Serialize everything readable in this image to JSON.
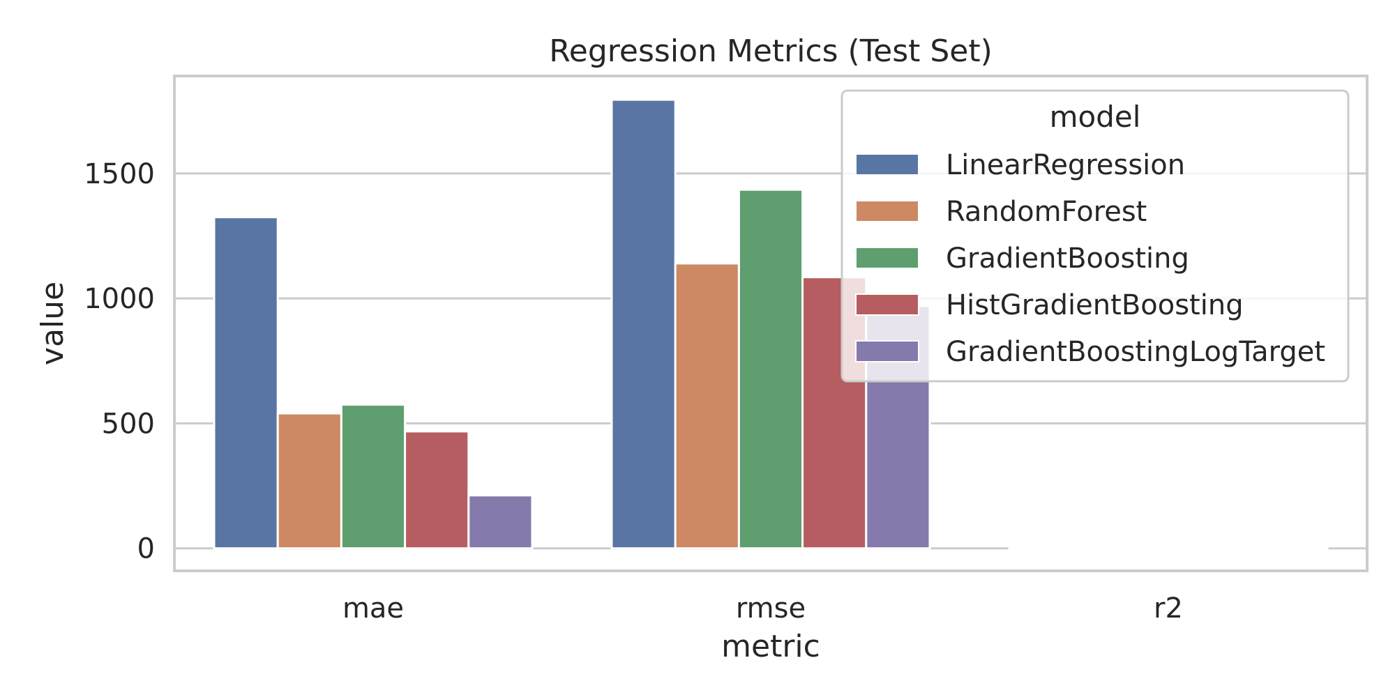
{
  "chart_data": {
    "type": "bar",
    "title": "Regression Metrics (Test Set)",
    "xlabel": "metric",
    "ylabel": "value",
    "categories": [
      "mae",
      "rmse",
      "r2"
    ],
    "ylim": [
      -90,
      1890
    ],
    "yticks": [
      0,
      500,
      1000,
      1500
    ],
    "grid": true,
    "legend": {
      "title": "model",
      "placement": "top-right"
    },
    "series": [
      {
        "name": "LinearRegression",
        "color": "#5875a4",
        "values": [
          1325,
          1795,
          0.55
        ]
      },
      {
        "name": "RandomForest",
        "color": "#cc8963",
        "values": [
          540,
          1140,
          0.91
        ]
      },
      {
        "name": "GradientBoosting",
        "color": "#5f9e6e",
        "values": [
          575,
          1435,
          0.84
        ]
      },
      {
        "name": "HistGradientBoosting",
        "color": "#b55d60",
        "values": [
          468,
          1085,
          0.92
        ]
      },
      {
        "name": "GradientBoostingLogTarget",
        "color": "#857aab",
        "values": [
          212,
          970,
          0.94
        ]
      }
    ]
  }
}
